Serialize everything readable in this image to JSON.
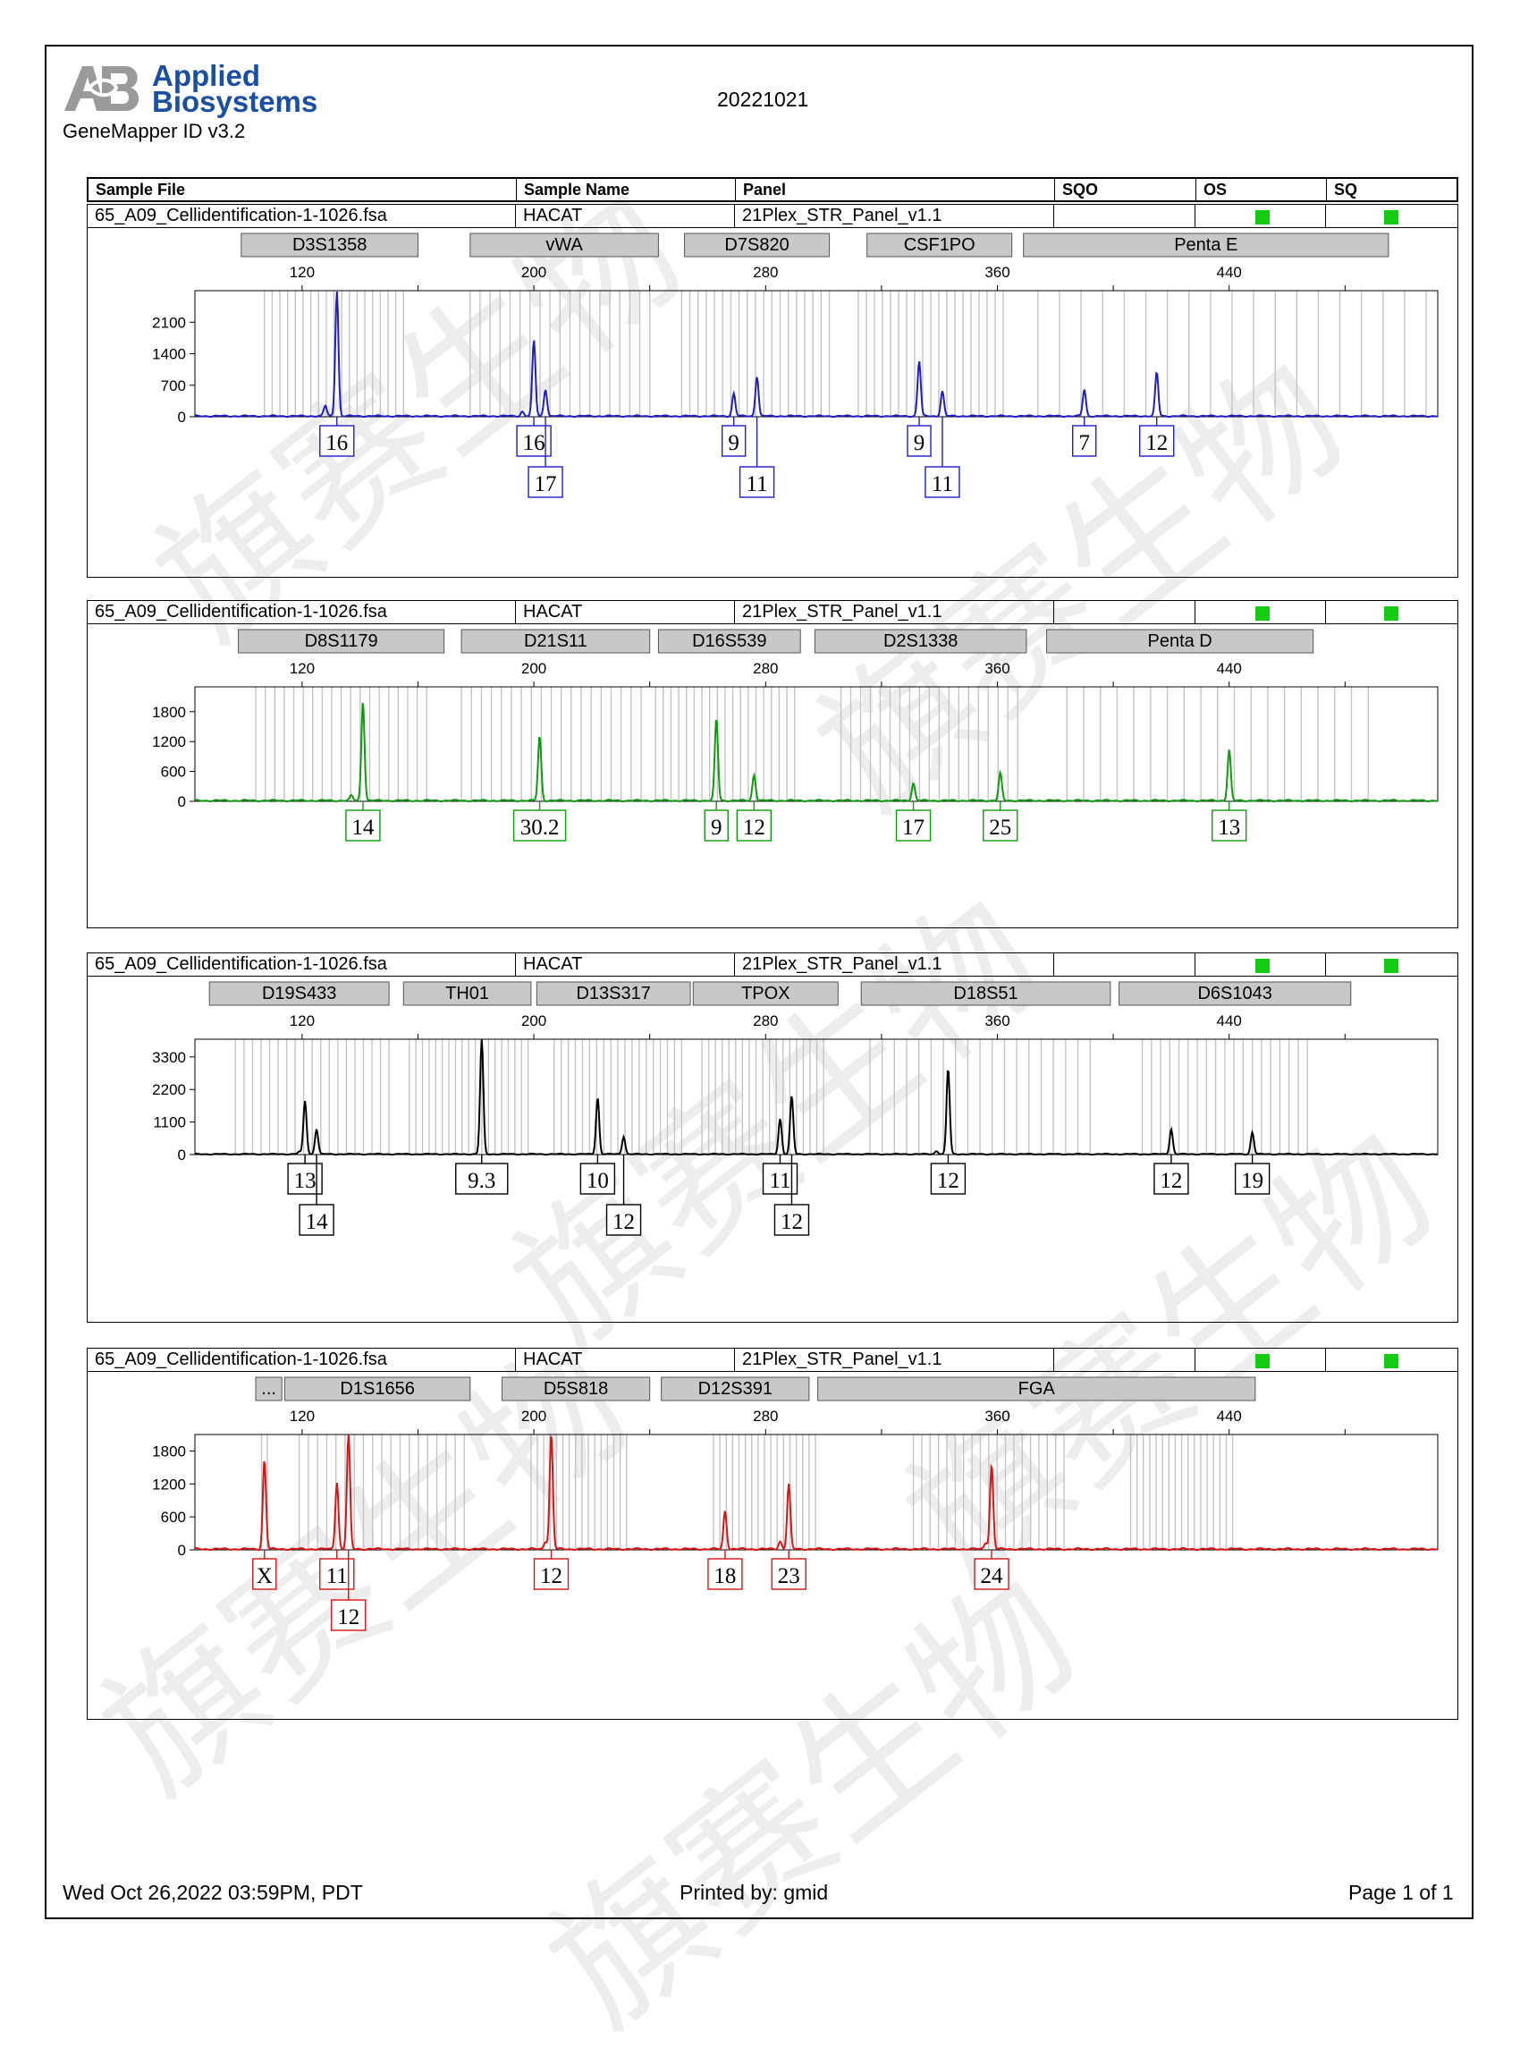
{
  "header": {
    "logo_line1": "Applied",
    "logo_line2": "Biosystems",
    "app_version": "GeneMapper ID v3.2",
    "report_title": "20221021"
  },
  "table_header": {
    "sample_file": "Sample File",
    "sample_name": "Sample Name",
    "panel": "Panel",
    "sqo": "SQO",
    "os": "OS",
    "sq": "SQ"
  },
  "footer": {
    "date": "Wed Oct 26,2022 03:59PM, PDT",
    "printed_by": "Printed by: gmid",
    "page": "Page 1 of 1"
  },
  "watermark": "旗赛生物",
  "colors": {
    "blue": "#1f1fbf",
    "green": "#0f9a0f",
    "black": "#000000",
    "red": "#d81414",
    "marker_fill": "#c8c8c8",
    "bin_line": "#c4c4c4",
    "quality_pass": "#11cc11"
  },
  "chart_data": [
    {
      "type": "line",
      "dye": "blue",
      "sample_file": "65_A09_Cellidentification-1-1026.fsa",
      "sample_name": "HACAT",
      "panel": "21Plex_STR_Panel_v1.1",
      "xlim": [
        83,
        512
      ],
      "x_ticks": [
        120,
        200,
        280,
        360,
        440
      ],
      "ylim": [
        0,
        2800
      ],
      "y_ticks": [
        0,
        700,
        1400,
        2100
      ],
      "markers": [
        {
          "name": "D3S1358",
          "range": [
            99,
            160
          ]
        },
        {
          "name": "vWA",
          "range": [
            178,
            243
          ]
        },
        {
          "name": "D7S820",
          "range": [
            252,
            302
          ]
        },
        {
          "name": "CSF1PO",
          "range": [
            315,
            365
          ]
        },
        {
          "name": "Penta E",
          "range": [
            369,
            495
          ]
        }
      ],
      "bins": [
        [
          107,
          155
        ],
        [
          178,
          240
        ],
        [
          251,
          302
        ],
        [
          312,
          362
        ],
        [
          374,
          508
        ]
      ],
      "peaks": [
        {
          "x": 128,
          "y": 230
        },
        {
          "x": 132,
          "y": 2780
        },
        {
          "x": 196,
          "y": 100
        },
        {
          "x": 200,
          "y": 1680
        },
        {
          "x": 204,
          "y": 600
        },
        {
          "x": 269,
          "y": 500
        },
        {
          "x": 277,
          "y": 880
        },
        {
          "x": 333,
          "y": 1220
        },
        {
          "x": 341,
          "y": 550
        },
        {
          "x": 390,
          "y": 590
        },
        {
          "x": 415,
          "y": 970
        }
      ],
      "alleles": [
        {
          "label": "16",
          "x": 132,
          "row": 0
        },
        {
          "label": "16",
          "x": 200,
          "row": 0
        },
        {
          "label": "17",
          "x": 204,
          "row": 1
        },
        {
          "label": "9",
          "x": 269,
          "row": 0
        },
        {
          "label": "11",
          "x": 277,
          "row": 1
        },
        {
          "label": "9",
          "x": 333,
          "row": 0
        },
        {
          "label": "11",
          "x": 341,
          "row": 1
        },
        {
          "label": "7",
          "x": 390,
          "row": 0
        },
        {
          "label": "12",
          "x": 415,
          "row": 0
        }
      ]
    },
    {
      "type": "line",
      "dye": "green",
      "sample_file": "65_A09_Cellidentification-1-1026.fsa",
      "sample_name": "HACAT",
      "panel": "21Plex_STR_Panel_v1.1",
      "xlim": [
        83,
        512
      ],
      "x_ticks": [
        120,
        200,
        280,
        360,
        440
      ],
      "ylim": [
        0,
        2300
      ],
      "y_ticks": [
        0,
        600,
        1200,
        1800
      ],
      "markers": [
        {
          "name": "D8S1179",
          "range": [
            98,
            169
          ]
        },
        {
          "name": "D21S11",
          "range": [
            175,
            240
          ]
        },
        {
          "name": "D16S539",
          "range": [
            243,
            292
          ]
        },
        {
          "name": "D2S1338",
          "range": [
            297,
            370
          ]
        },
        {
          "name": "Penta D",
          "range": [
            377,
            469
          ]
        }
      ],
      "bins": [
        [
          104,
          163
        ],
        [
          175,
          237
        ],
        [
          242,
          290
        ],
        [
          306,
          367
        ],
        [
          384,
          488
        ]
      ],
      "peaks": [
        {
          "x": 137,
          "y": 100
        },
        {
          "x": 141,
          "y": 2000
        },
        {
          "x": 202,
          "y": 1300
        },
        {
          "x": 263,
          "y": 1650
        },
        {
          "x": 276,
          "y": 520
        },
        {
          "x": 331,
          "y": 350
        },
        {
          "x": 361,
          "y": 550
        },
        {
          "x": 440,
          "y": 1020
        }
      ],
      "alleles": [
        {
          "label": "14",
          "x": 141,
          "row": 0
        },
        {
          "label": "30.2",
          "x": 202,
          "row": 0
        },
        {
          "label": "9",
          "x": 263,
          "row": 0
        },
        {
          "label": "12",
          "x": 276,
          "row": 0
        },
        {
          "label": "17",
          "x": 331,
          "row": 0
        },
        {
          "label": "25",
          "x": 361,
          "row": 0
        },
        {
          "label": "13",
          "x": 440,
          "row": 0
        }
      ]
    },
    {
      "type": "line",
      "dye": "black",
      "sample_file": "65_A09_Cellidentification-1-1026.fsa",
      "sample_name": "HACAT",
      "panel": "21Plex_STR_Panel_v1.1",
      "xlim": [
        83,
        512
      ],
      "x_ticks": [
        120,
        200,
        280,
        360,
        440
      ],
      "ylim": [
        0,
        3900
      ],
      "y_ticks": [
        0,
        1100,
        2200,
        3300
      ],
      "markers": [
        {
          "name": "D19S433",
          "range": [
            88,
            150
          ]
        },
        {
          "name": "TH01",
          "range": [
            155,
            199
          ]
        },
        {
          "name": "D13S317",
          "range": [
            201,
            254
          ]
        },
        {
          "name": "TPOX",
          "range": [
            255,
            305
          ]
        },
        {
          "name": "D18S51",
          "range": [
            313,
            399
          ]
        },
        {
          "name": "D6S1043",
          "range": [
            402,
            482
          ]
        }
      ],
      "bins": [
        [
          97,
          150
        ],
        [
          157,
          198
        ],
        [
          207,
          251
        ],
        [
          258,
          300
        ],
        [
          316,
          392
        ],
        [
          410,
          467
        ]
      ],
      "peaks": [
        {
          "x": 119,
          "y": 80
        },
        {
          "x": 121,
          "y": 1800
        },
        {
          "x": 125,
          "y": 850
        },
        {
          "x": 182,
          "y": 3900
        },
        {
          "x": 222,
          "y": 1920
        },
        {
          "x": 231,
          "y": 600
        },
        {
          "x": 285,
          "y": 1200
        },
        {
          "x": 289,
          "y": 1960
        },
        {
          "x": 339,
          "y": 110
        },
        {
          "x": 343,
          "y": 2900
        },
        {
          "x": 420,
          "y": 850
        },
        {
          "x": 448,
          "y": 740
        }
      ],
      "alleles": [
        {
          "label": "13",
          "x": 121,
          "row": 0
        },
        {
          "label": "14",
          "x": 125,
          "row": 1
        },
        {
          "label": "9.3",
          "x": 182,
          "row": 0
        },
        {
          "label": "10",
          "x": 222,
          "row": 0
        },
        {
          "label": "12",
          "x": 231,
          "row": 1
        },
        {
          "label": "11",
          "x": 285,
          "row": 0
        },
        {
          "label": "12",
          "x": 289,
          "row": 1
        },
        {
          "label": "12",
          "x": 343,
          "row": 0
        },
        {
          "label": "12",
          "x": 420,
          "row": 0
        },
        {
          "label": "19",
          "x": 448,
          "row": 0
        }
      ]
    },
    {
      "type": "line",
      "dye": "red",
      "sample_file": "65_A09_Cellidentification-1-1026.fsa",
      "sample_name": "HACAT",
      "panel": "21Plex_STR_Panel_v1.1",
      "xlim": [
        83,
        512
      ],
      "x_ticks": [
        120,
        200,
        280,
        360,
        440
      ],
      "ylim": [
        0,
        2100
      ],
      "y_ticks": [
        0,
        600,
        1200,
        1800
      ],
      "markers": [
        {
          "name": "...",
          "range": [
            104,
            113
          ]
        },
        {
          "name": "D1S1656",
          "range": [
            114,
            178
          ]
        },
        {
          "name": "D5S818",
          "range": [
            189,
            240
          ]
        },
        {
          "name": "D12S391",
          "range": [
            244,
            295
          ]
        },
        {
          "name": "FGA",
          "range": [
            298,
            449
          ]
        }
      ],
      "bins": [
        [
          106,
          108
        ],
        [
          119,
          176
        ],
        [
          199,
          233
        ],
        [
          262,
          299
        ],
        [
          331,
          383
        ],
        [
          406,
          442
        ]
      ],
      "peaks": [
        {
          "x": 107,
          "y": 1620
        },
        {
          "x": 132,
          "y": 1220
        },
        {
          "x": 136,
          "y": 2100
        },
        {
          "x": 204,
          "y": 140
        },
        {
          "x": 206,
          "y": 2100
        },
        {
          "x": 266,
          "y": 700
        },
        {
          "x": 285,
          "y": 140
        },
        {
          "x": 288,
          "y": 1180
        },
        {
          "x": 356,
          "y": 120
        },
        {
          "x": 358,
          "y": 1540
        }
      ],
      "alleles": [
        {
          "label": "X",
          "x": 107,
          "row": 0
        },
        {
          "label": "11",
          "x": 132,
          "row": 0
        },
        {
          "label": "12",
          "x": 136,
          "row": 1
        },
        {
          "label": "12",
          "x": 206,
          "row": 0
        },
        {
          "label": "18",
          "x": 266,
          "row": 0
        },
        {
          "label": "23",
          "x": 288,
          "row": 0
        },
        {
          "label": "24",
          "x": 358,
          "row": 0
        }
      ]
    }
  ]
}
